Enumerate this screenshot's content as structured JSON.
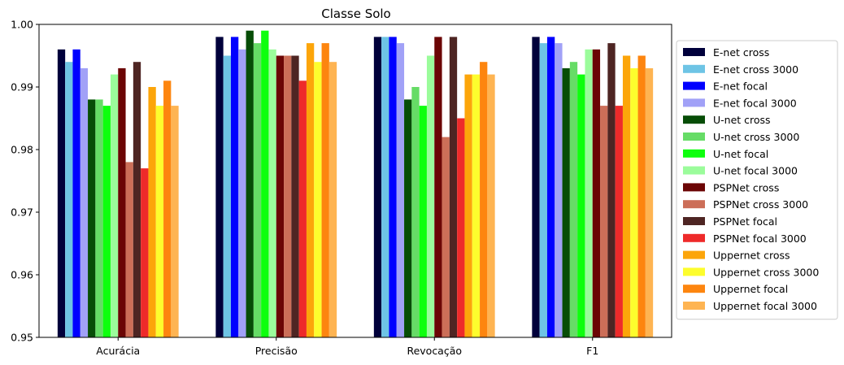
{
  "chart_data": {
    "type": "bar",
    "title": "Classe Solo",
    "xlabel": "",
    "ylabel": "",
    "ylim": [
      0.95,
      1.0
    ],
    "yticks": [
      "0.95",
      "0.96",
      "0.97",
      "0.98",
      "0.99",
      "1.00"
    ],
    "categories": [
      "Acurácia",
      "Precisão",
      "Revocação",
      "F1"
    ],
    "legend_position": "right",
    "grid": false,
    "series": [
      {
        "name": "E-net cross",
        "color": "#00003b",
        "values": [
          0.996,
          0.998,
          0.998,
          0.998
        ]
      },
      {
        "name": "E-net cross 3000",
        "color": "#6ec4e5",
        "values": [
          0.994,
          0.995,
          0.998,
          0.997
        ]
      },
      {
        "name": "E-net focal",
        "color": "#0000ff",
        "values": [
          0.996,
          0.998,
          0.998,
          0.998
        ]
      },
      {
        "name": "E-net focal 3000",
        "color": "#a1a1f7",
        "values": [
          0.993,
          0.996,
          0.997,
          0.997
        ]
      },
      {
        "name": "U-net cross",
        "color": "#074d07",
        "values": [
          0.988,
          0.999,
          0.988,
          0.993
        ]
      },
      {
        "name": "U-net cross 3000",
        "color": "#66dc66",
        "values": [
          0.988,
          0.997,
          0.99,
          0.994
        ]
      },
      {
        "name": "U-net focal",
        "color": "#0eff0e",
        "values": [
          0.987,
          0.999,
          0.987,
          0.992
        ]
      },
      {
        "name": "U-net focal 3000",
        "color": "#9bfc9b",
        "values": [
          0.992,
          0.996,
          0.995,
          0.996
        ]
      },
      {
        "name": "PSPNet cross",
        "color": "#6b0505",
        "values": [
          0.993,
          0.995,
          0.998,
          0.996
        ]
      },
      {
        "name": "PSPNet cross 3000",
        "color": "#cc6e58",
        "values": [
          0.978,
          0.995,
          0.982,
          0.987
        ]
      },
      {
        "name": "PSPNet focal",
        "color": "#4e2523",
        "values": [
          0.994,
          0.995,
          0.998,
          0.997
        ]
      },
      {
        "name": "PSPNet focal 3000",
        "color": "#ee2a2a",
        "values": [
          0.977,
          0.991,
          0.985,
          0.987
        ]
      },
      {
        "name": "Uppernet cross",
        "color": "#fca50a",
        "values": [
          0.99,
          0.997,
          0.992,
          0.995
        ]
      },
      {
        "name": "Uppernet cross 3000",
        "color": "#fdfd2d",
        "values": [
          0.987,
          0.994,
          0.992,
          0.993
        ]
      },
      {
        "name": "Uppernet focal",
        "color": "#fd850f",
        "values": [
          0.991,
          0.997,
          0.994,
          0.995
        ]
      },
      {
        "name": "Uppernet focal 3000",
        "color": "#feb452",
        "values": [
          0.987,
          0.994,
          0.992,
          0.993
        ]
      }
    ]
  }
}
